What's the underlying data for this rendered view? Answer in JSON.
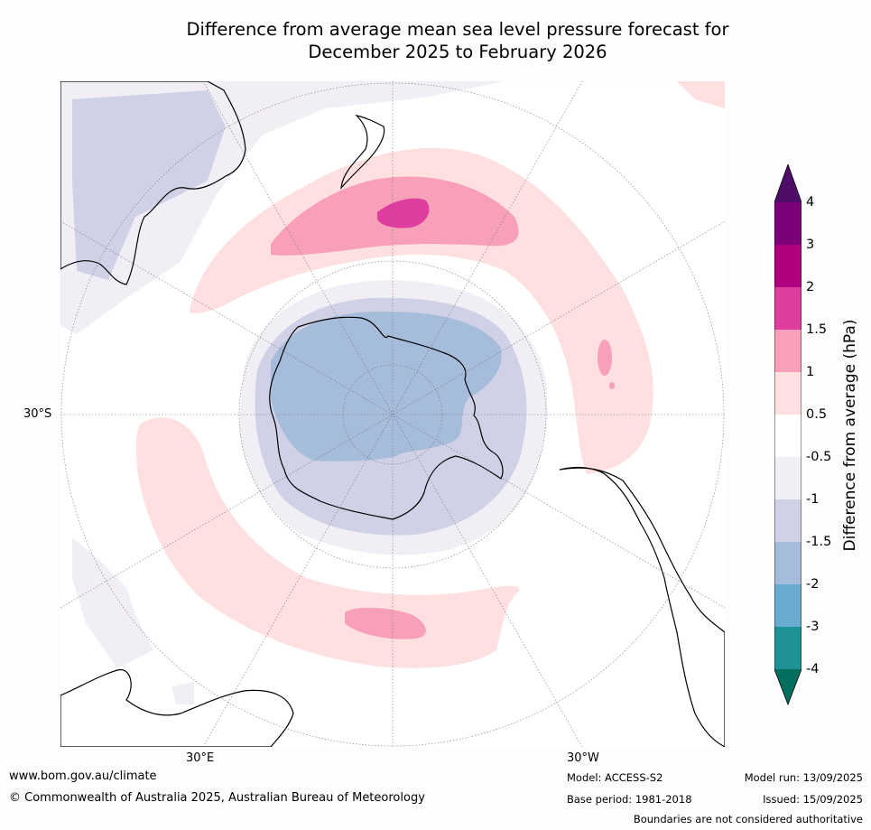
{
  "title": {
    "line1": "Difference from average mean sea level pressure forecast for",
    "line2": "December 2025 to February 2026"
  },
  "map": {
    "projection": "south-polar-stereographic",
    "graticule_labels": {
      "lat": "30°S",
      "lon_left": "30°E",
      "lon_right": "30°W"
    },
    "landmasses_shown": [
      "Antarctica",
      "Australia",
      "New Zealand",
      "South America",
      "Africa"
    ]
  },
  "legend": {
    "label": "Difference from average (hPa)",
    "ticks": [
      "4",
      "3",
      "2",
      "1.5",
      "1",
      "0.5",
      "-0.5",
      "-1",
      "-1.5",
      "-2",
      "-3",
      "-4"
    ],
    "colors": {
      "above_4": "#4f0d6a",
      "3_to_4": "#7c007a",
      "2_to_3": "#b1007f",
      "1.5_to_2": "#de3ea0",
      "1_to_1.5": "#f8a0b9",
      "0.5_to_1": "#fde0df",
      "neutral": "#ffffff",
      "-1_to_-0.5": "#f2eef5",
      "-1.5_to_-1": "#d0d1e6",
      "-2_to_-1.5": "#a6bcdb",
      "-3_to_-2": "#6aabd2",
      "-4_to_-3": "#1e9294",
      "below_-4": "#016e5e"
    }
  },
  "footer": {
    "url": "www.bom.gov.au/climate",
    "copyright": "© Commonwealth of Australia 2025, Australian Bureau of Meteorology",
    "model": "Model: ACCESS-S2",
    "base_period": "Base period: 1981-2018",
    "model_run": "Model run: 13/09/2025",
    "issued": "Issued: 15/09/2025",
    "disclaimer": "Boundaries are not considered authoritative"
  }
}
